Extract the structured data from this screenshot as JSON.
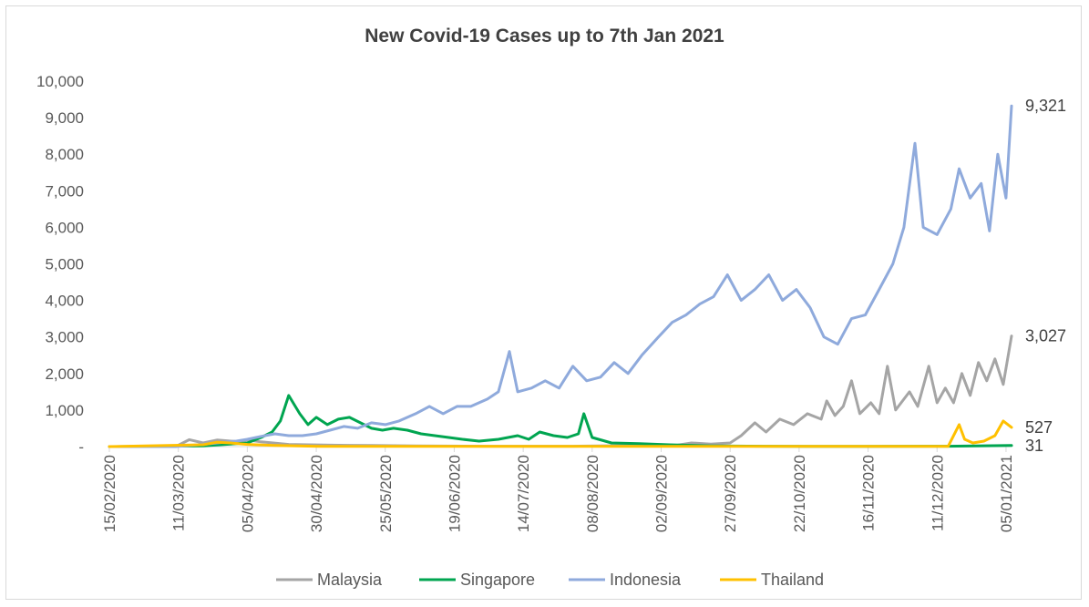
{
  "chart_data": {
    "type": "line",
    "title": "New Covid-19 Cases up to 7th Jan 2021",
    "xlabel": "",
    "ylabel": "",
    "ylim": [
      0,
      10000
    ],
    "y_ticks": [
      0,
      1000,
      2000,
      3000,
      4000,
      5000,
      6000,
      7000,
      8000,
      9000,
      10000
    ],
    "y_tick_labels": [
      "-",
      "1,000",
      "2,000",
      "3,000",
      "4,000",
      "5,000",
      "6,000",
      "7,000",
      "8,000",
      "9,000",
      "10,000"
    ],
    "x_start": "2020-02-15",
    "x_end": "2021-01-07",
    "x_tick_labels": [
      "15/02/2020",
      "11/03/2020",
      "05/04/2020",
      "30/04/2020",
      "25/05/2020",
      "19/06/2020",
      "14/07/2020",
      "08/08/2020",
      "02/09/2020",
      "27/09/2020",
      "22/10/2020",
      "16/11/2020",
      "11/12/2020",
      "05/01/2021"
    ],
    "grid": false,
    "legend_position": "bottom",
    "series": [
      {
        "name": "Malaysia",
        "color": "#a5a5a5",
        "points": [
          [
            "2020-02-15",
            0
          ],
          [
            "2020-03-10",
            0
          ],
          [
            "2020-03-15",
            190
          ],
          [
            "2020-03-20",
            100
          ],
          [
            "2020-03-25",
            180
          ],
          [
            "2020-04-01",
            140
          ],
          [
            "2020-04-05",
            180
          ],
          [
            "2020-04-10",
            130
          ],
          [
            "2020-04-20",
            60
          ],
          [
            "2020-05-05",
            40
          ],
          [
            "2020-05-20",
            30
          ],
          [
            "2020-06-05",
            20
          ],
          [
            "2020-07-01",
            10
          ],
          [
            "2020-08-01",
            10
          ],
          [
            "2020-09-08",
            40
          ],
          [
            "2020-09-13",
            100
          ],
          [
            "2020-09-20",
            70
          ],
          [
            "2020-09-27",
            100
          ],
          [
            "2020-10-01",
            300
          ],
          [
            "2020-10-06",
            650
          ],
          [
            "2020-10-10",
            400
          ],
          [
            "2020-10-15",
            750
          ],
          [
            "2020-10-20",
            600
          ],
          [
            "2020-10-25",
            900
          ],
          [
            "2020-10-30",
            750
          ],
          [
            "2020-11-01",
            1250
          ],
          [
            "2020-11-04",
            850
          ],
          [
            "2020-11-07",
            1100
          ],
          [
            "2020-11-10",
            1800
          ],
          [
            "2020-11-13",
            900
          ],
          [
            "2020-11-17",
            1200
          ],
          [
            "2020-11-20",
            900
          ],
          [
            "2020-11-23",
            2200
          ],
          [
            "2020-11-26",
            1000
          ],
          [
            "2020-12-01",
            1500
          ],
          [
            "2020-12-04",
            1100
          ],
          [
            "2020-12-08",
            2200
          ],
          [
            "2020-12-11",
            1200
          ],
          [
            "2020-12-14",
            1600
          ],
          [
            "2020-12-17",
            1200
          ],
          [
            "2020-12-20",
            2000
          ],
          [
            "2020-12-23",
            1400
          ],
          [
            "2020-12-26",
            2300
          ],
          [
            "2020-12-29",
            1800
          ],
          [
            "2021-01-01",
            2400
          ],
          [
            "2021-01-04",
            1700
          ],
          [
            "2021-01-07",
            3027
          ]
        ]
      },
      {
        "name": "Singapore",
        "color": "#00a550",
        "points": [
          [
            "2020-02-15",
            0
          ],
          [
            "2020-03-20",
            20
          ],
          [
            "2020-04-05",
            100
          ],
          [
            "2020-04-10",
            250
          ],
          [
            "2020-04-14",
            400
          ],
          [
            "2020-04-17",
            700
          ],
          [
            "2020-04-20",
            1400
          ],
          [
            "2020-04-24",
            900
          ],
          [
            "2020-04-27",
            600
          ],
          [
            "2020-04-30",
            800
          ],
          [
            "2020-05-04",
            600
          ],
          [
            "2020-05-08",
            750
          ],
          [
            "2020-05-12",
            800
          ],
          [
            "2020-05-16",
            650
          ],
          [
            "2020-05-20",
            500
          ],
          [
            "2020-05-24",
            450
          ],
          [
            "2020-05-28",
            500
          ],
          [
            "2020-06-02",
            450
          ],
          [
            "2020-06-07",
            350
          ],
          [
            "2020-06-12",
            300
          ],
          [
            "2020-06-17",
            250
          ],
          [
            "2020-06-22",
            200
          ],
          [
            "2020-06-28",
            150
          ],
          [
            "2020-07-05",
            200
          ],
          [
            "2020-07-12",
            300
          ],
          [
            "2020-07-16",
            200
          ],
          [
            "2020-07-20",
            400
          ],
          [
            "2020-07-25",
            300
          ],
          [
            "2020-07-30",
            250
          ],
          [
            "2020-08-03",
            350
          ],
          [
            "2020-08-05",
            900
          ],
          [
            "2020-08-08",
            250
          ],
          [
            "2020-08-15",
            100
          ],
          [
            "2020-08-25",
            80
          ],
          [
            "2020-09-05",
            50
          ],
          [
            "2020-09-20",
            20
          ],
          [
            "2020-10-10",
            10
          ],
          [
            "2020-11-15",
            5
          ],
          [
            "2020-12-15",
            10
          ],
          [
            "2020-12-25",
            20
          ],
          [
            "2021-01-07",
            31
          ]
        ]
      },
      {
        "name": "Indonesia",
        "color": "#8faadc",
        "points": [
          [
            "2020-02-15",
            0
          ],
          [
            "2020-03-10",
            0
          ],
          [
            "2020-03-20",
            60
          ],
          [
            "2020-03-25",
            100
          ],
          [
            "2020-04-01",
            150
          ],
          [
            "2020-04-05",
            200
          ],
          [
            "2020-04-10",
            280
          ],
          [
            "2020-04-15",
            350
          ],
          [
            "2020-04-20",
            300
          ],
          [
            "2020-04-25",
            300
          ],
          [
            "2020-04-30",
            350
          ],
          [
            "2020-05-05",
            450
          ],
          [
            "2020-05-10",
            550
          ],
          [
            "2020-05-15",
            500
          ],
          [
            "2020-05-20",
            650
          ],
          [
            "2020-05-25",
            600
          ],
          [
            "2020-05-30",
            700
          ],
          [
            "2020-06-05",
            900
          ],
          [
            "2020-06-10",
            1100
          ],
          [
            "2020-06-15",
            900
          ],
          [
            "2020-06-20",
            1100
          ],
          [
            "2020-06-25",
            1100
          ],
          [
            "2020-07-01",
            1300
          ],
          [
            "2020-07-05",
            1500
          ],
          [
            "2020-07-09",
            2600
          ],
          [
            "2020-07-12",
            1500
          ],
          [
            "2020-07-17",
            1600
          ],
          [
            "2020-07-22",
            1800
          ],
          [
            "2020-07-27",
            1600
          ],
          [
            "2020-08-01",
            2200
          ],
          [
            "2020-08-06",
            1800
          ],
          [
            "2020-08-11",
            1900
          ],
          [
            "2020-08-16",
            2300
          ],
          [
            "2020-08-21",
            2000
          ],
          [
            "2020-08-26",
            2500
          ],
          [
            "2020-09-01",
            3000
          ],
          [
            "2020-09-06",
            3400
          ],
          [
            "2020-09-11",
            3600
          ],
          [
            "2020-09-16",
            3900
          ],
          [
            "2020-09-21",
            4100
          ],
          [
            "2020-09-26",
            4700
          ],
          [
            "2020-10-01",
            4000
          ],
          [
            "2020-10-06",
            4300
          ],
          [
            "2020-10-11",
            4700
          ],
          [
            "2020-10-16",
            4000
          ],
          [
            "2020-10-21",
            4300
          ],
          [
            "2020-10-26",
            3800
          ],
          [
            "2020-10-31",
            3000
          ],
          [
            "2020-11-05",
            2800
          ],
          [
            "2020-11-10",
            3500
          ],
          [
            "2020-11-15",
            3600
          ],
          [
            "2020-11-20",
            4300
          ],
          [
            "2020-11-25",
            5000
          ],
          [
            "2020-11-29",
            6000
          ],
          [
            "2020-12-03",
            8300
          ],
          [
            "2020-12-06",
            6000
          ],
          [
            "2020-12-11",
            5800
          ],
          [
            "2020-12-16",
            6500
          ],
          [
            "2020-12-19",
            7600
          ],
          [
            "2020-12-23",
            6800
          ],
          [
            "2020-12-27",
            7200
          ],
          [
            "2020-12-30",
            5900
          ],
          [
            "2021-01-02",
            8000
          ],
          [
            "2021-01-05",
            6800
          ],
          [
            "2021-01-07",
            9321
          ]
        ]
      },
      {
        "name": "Thailand",
        "color": "#ffc000",
        "points": [
          [
            "2020-02-15",
            0
          ],
          [
            "2020-03-20",
            50
          ],
          [
            "2020-03-25",
            120
          ],
          [
            "2020-03-30",
            100
          ],
          [
            "2020-04-05",
            60
          ],
          [
            "2020-04-15",
            30
          ],
          [
            "2020-05-01",
            5
          ],
          [
            "2020-12-15",
            5
          ],
          [
            "2020-12-19",
            600
          ],
          [
            "2020-12-21",
            200
          ],
          [
            "2020-12-24",
            100
          ],
          [
            "2020-12-28",
            150
          ],
          [
            "2021-01-01",
            300
          ],
          [
            "2021-01-04",
            700
          ],
          [
            "2021-01-07",
            527
          ]
        ]
      }
    ],
    "end_labels": [
      {
        "series": "Indonesia",
        "text": "9,321",
        "value": 9321
      },
      {
        "series": "Malaysia",
        "text": "3,027",
        "value": 3027
      },
      {
        "series": "Thailand",
        "text": "527",
        "value": 527
      },
      {
        "series": "Singapore",
        "text": "31",
        "value": 31
      }
    ]
  }
}
